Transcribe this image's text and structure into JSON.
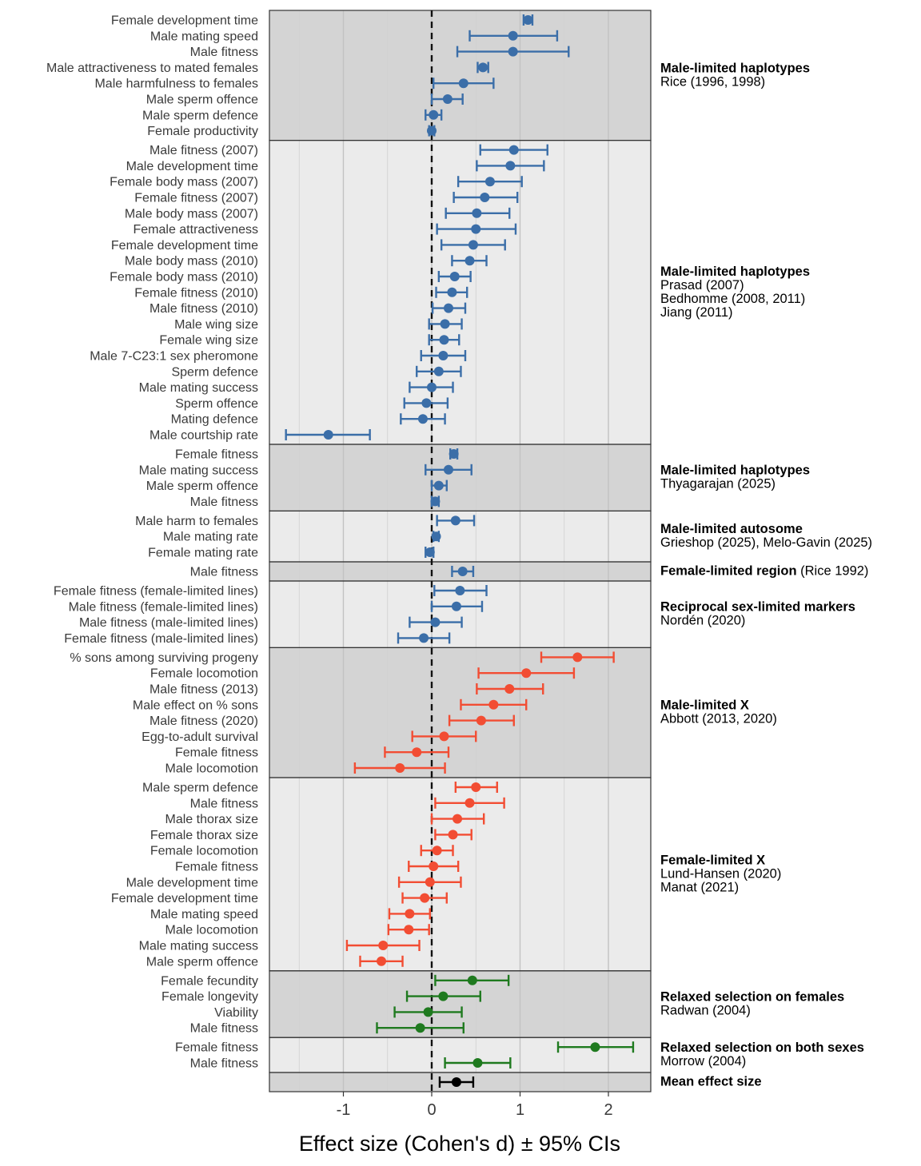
{
  "chart_data": {
    "type": "forest",
    "xlabel": "Effect size (Cohen's d) ± 95% CIs",
    "xlim": [
      -1.85,
      2.48
    ],
    "x_ticks": [
      -1,
      0,
      1,
      2
    ],
    "x_tick_labels": [
      "-1",
      "0",
      "1",
      "2"
    ],
    "zero_line": 0,
    "colors": {
      "blue": "#3b6ea8",
      "red": "#f24d33",
      "green": "#1f7a1f",
      "black": "#000000",
      "panel_dark": "#d4d4d4",
      "panel_light": "#ebebeb"
    },
    "groups": [
      {
        "title": "Male-limited haplotypes",
        "title_suffix": "",
        "subtitle": [
          "Rice (1996, 1998)"
        ],
        "color": "blue",
        "shade": "dark",
        "rows": [
          {
            "label": "Female development time",
            "d": 1.09,
            "lo": 1.04,
            "hi": 1.14
          },
          {
            "label": "Male mating speed",
            "d": 0.92,
            "lo": 0.43,
            "hi": 1.42
          },
          {
            "label": "Male fitness",
            "d": 0.92,
            "lo": 0.29,
            "hi": 1.55
          },
          {
            "label": "Male attractiveness to mated females",
            "d": 0.58,
            "lo": 0.52,
            "hi": 0.64
          },
          {
            "label": "Male harmfulness to females",
            "d": 0.36,
            "lo": 0.02,
            "hi": 0.7
          },
          {
            "label": "Male sperm offence",
            "d": 0.18,
            "lo": 0.0,
            "hi": 0.35
          },
          {
            "label": "Male sperm defence",
            "d": 0.02,
            "lo": -0.07,
            "hi": 0.11
          },
          {
            "label": "Female productivity",
            "d": 0.0,
            "lo": -0.03,
            "hi": 0.03
          }
        ]
      },
      {
        "title": "Male-limited haplotypes",
        "title_suffix": "",
        "subtitle": [
          "Prasad (2007)",
          "Bedhomme (2008, 2011)",
          "Jiang (2011)"
        ],
        "color": "blue",
        "shade": "light",
        "rows": [
          {
            "label": "Male fitness (2007)",
            "d": 0.93,
            "lo": 0.55,
            "hi": 1.31
          },
          {
            "label": "Male development time",
            "d": 0.89,
            "lo": 0.51,
            "hi": 1.27
          },
          {
            "label": "Female body mass (2007)",
            "d": 0.66,
            "lo": 0.3,
            "hi": 1.02
          },
          {
            "label": "Female fitness (2007)",
            "d": 0.6,
            "lo": 0.25,
            "hi": 0.97
          },
          {
            "label": "Male body mass (2007)",
            "d": 0.51,
            "lo": 0.16,
            "hi": 0.88
          },
          {
            "label": "Female attractiveness",
            "d": 0.5,
            "lo": 0.06,
            "hi": 0.95
          },
          {
            "label": "Female development time",
            "d": 0.47,
            "lo": 0.11,
            "hi": 0.83
          },
          {
            "label": "Male body mass  (2010)",
            "d": 0.43,
            "lo": 0.23,
            "hi": 0.62
          },
          {
            "label": "Female body mass (2010)",
            "d": 0.26,
            "lo": 0.08,
            "hi": 0.44
          },
          {
            "label": "Female fitness (2010)",
            "d": 0.23,
            "lo": 0.05,
            "hi": 0.4
          },
          {
            "label": "Male fitness  (2010)",
            "d": 0.19,
            "lo": 0.01,
            "hi": 0.38
          },
          {
            "label": "Male wing size",
            "d": 0.15,
            "lo": -0.03,
            "hi": 0.34
          },
          {
            "label": "Female wing size",
            "d": 0.14,
            "lo": -0.03,
            "hi": 0.31
          },
          {
            "label": "Male 7-C23:1 sex pheromone",
            "d": 0.13,
            "lo": -0.12,
            "hi": 0.38
          },
          {
            "label": "Sperm defence",
            "d": 0.08,
            "lo": -0.17,
            "hi": 0.33
          },
          {
            "label": "Male mating success",
            "d": 0.0,
            "lo": -0.25,
            "hi": 0.24
          },
          {
            "label": "Sperm offence",
            "d": -0.06,
            "lo": -0.31,
            "hi": 0.18
          },
          {
            "label": "Mating defence",
            "d": -0.1,
            "lo": -0.35,
            "hi": 0.15
          },
          {
            "label": "Male courtship rate",
            "d": -1.17,
            "lo": -1.65,
            "hi": -0.7
          }
        ]
      },
      {
        "title": "Male-limited haplotypes",
        "title_suffix": "",
        "subtitle": [
          "Thyagarajan (2025)"
        ],
        "color": "blue",
        "shade": "dark",
        "rows": [
          {
            "label": "Female fitness",
            "d": 0.25,
            "lo": 0.21,
            "hi": 0.29
          },
          {
            "label": "Male mating success",
            "d": 0.19,
            "lo": -0.07,
            "hi": 0.45
          },
          {
            "label": "Male sperm offence",
            "d": 0.08,
            "lo": 0.0,
            "hi": 0.17
          },
          {
            "label": "Male fitness",
            "d": 0.04,
            "lo": 0.0,
            "hi": 0.08
          }
        ]
      },
      {
        "title": "Male-limited autosome",
        "title_suffix": "",
        "subtitle": [
          "Grieshop (2025), Melo-Gavin (2025)"
        ],
        "color": "blue",
        "shade": "light",
        "rows": [
          {
            "label": "Male harm to females",
            "d": 0.27,
            "lo": 0.06,
            "hi": 0.48
          },
          {
            "label": "Male mating rate",
            "d": 0.05,
            "lo": 0.02,
            "hi": 0.08
          },
          {
            "label": "Female mating rate",
            "d": -0.02,
            "lo": -0.07,
            "hi": 0.02
          }
        ]
      },
      {
        "title": "Female-limited region",
        "title_suffix": " (Rice 1992)",
        "subtitle": [],
        "color": "blue",
        "shade": "dark",
        "rows": [
          {
            "label": "Male fitness",
            "d": 0.35,
            "lo": 0.23,
            "hi": 0.47
          }
        ]
      },
      {
        "title": "Reciprocal sex-limited markers",
        "title_suffix": "",
        "subtitle": [
          "Nordén (2020)"
        ],
        "color": "blue",
        "shade": "light",
        "rows": [
          {
            "label": "Female fitness (female-limited lines)",
            "d": 0.32,
            "lo": 0.03,
            "hi": 0.62
          },
          {
            "label": "Male fitness (female-limited lines)",
            "d": 0.28,
            "lo": 0.0,
            "hi": 0.57
          },
          {
            "label": "Male fitness (male-limited lines)",
            "d": 0.04,
            "lo": -0.25,
            "hi": 0.34
          },
          {
            "label": "Female fitness (male-limited lines)",
            "d": -0.09,
            "lo": -0.38,
            "hi": 0.2
          }
        ]
      },
      {
        "title": "Male-limited X",
        "title_suffix": "",
        "subtitle": [
          "Abbott (2013, 2020)"
        ],
        "color": "red",
        "shade": "dark",
        "rows": [
          {
            "label": "% sons among surviving progeny",
            "d": 1.65,
            "lo": 1.24,
            "hi": 2.06
          },
          {
            "label": "Female locomotion",
            "d": 1.07,
            "lo": 0.53,
            "hi": 1.61
          },
          {
            "label": "Male fitness (2013)",
            "d": 0.88,
            "lo": 0.51,
            "hi": 1.26
          },
          {
            "label": "Male effect on % sons",
            "d": 0.7,
            "lo": 0.33,
            "hi": 1.07
          },
          {
            "label": "Male fitness (2020)",
            "d": 0.56,
            "lo": 0.2,
            "hi": 0.93
          },
          {
            "label": "Egg-to-adult survival",
            "d": 0.14,
            "lo": -0.22,
            "hi": 0.5
          },
          {
            "label": "Female fitness",
            "d": -0.17,
            "lo": -0.53,
            "hi": 0.19
          },
          {
            "label": "Male locomotion",
            "d": -0.36,
            "lo": -0.87,
            "hi": 0.15
          }
        ]
      },
      {
        "title": "Female-limited X",
        "title_suffix": "",
        "subtitle": [
          "Lund-Hansen (2020)",
          "Manat (2021)"
        ],
        "color": "red",
        "shade": "light",
        "rows": [
          {
            "label": "Male sperm defence",
            "d": 0.5,
            "lo": 0.27,
            "hi": 0.74
          },
          {
            "label": "Male fitness",
            "d": 0.43,
            "lo": 0.04,
            "hi": 0.82
          },
          {
            "label": "Male thorax size",
            "d": 0.29,
            "lo": 0.0,
            "hi": 0.59
          },
          {
            "label": "Female thorax size",
            "d": 0.24,
            "lo": 0.04,
            "hi": 0.45
          },
          {
            "label": "Female locomotion",
            "d": 0.06,
            "lo": -0.12,
            "hi": 0.24
          },
          {
            "label": "Female fitness",
            "d": 0.02,
            "lo": -0.26,
            "hi": 0.3
          },
          {
            "label": "Male development time",
            "d": -0.02,
            "lo": -0.37,
            "hi": 0.33
          },
          {
            "label": "Female development time",
            "d": -0.08,
            "lo": -0.33,
            "hi": 0.17
          },
          {
            "label": "Male mating speed",
            "d": -0.25,
            "lo": -0.48,
            "hi": -0.02
          },
          {
            "label": "Male locomotion",
            "d": -0.26,
            "lo": -0.49,
            "hi": -0.03
          },
          {
            "label": "Male mating success",
            "d": -0.55,
            "lo": -0.96,
            "hi": -0.14
          },
          {
            "label": "Male sperm offence",
            "d": -0.57,
            "lo": -0.81,
            "hi": -0.33
          }
        ]
      },
      {
        "title": "Relaxed selection on females",
        "title_suffix": "",
        "subtitle": [
          "Radwan (2004)"
        ],
        "color": "green",
        "shade": "dark",
        "rows": [
          {
            "label": "Female fecundity",
            "d": 0.46,
            "lo": 0.04,
            "hi": 0.87
          },
          {
            "label": "Female longevity",
            "d": 0.13,
            "lo": -0.28,
            "hi": 0.55
          },
          {
            "label": "Viability",
            "d": -0.04,
            "lo": -0.42,
            "hi": 0.34
          },
          {
            "label": "Male fitness",
            "d": -0.13,
            "lo": -0.62,
            "hi": 0.36
          }
        ]
      },
      {
        "title": "Relaxed selection on both sexes",
        "title_suffix": "",
        "subtitle": [
          "Morrow (2004)"
        ],
        "color": "green",
        "shade": "light",
        "rows": [
          {
            "label": "Female fitness",
            "d": 1.85,
            "lo": 1.43,
            "hi": 2.28
          },
          {
            "label": "Male fitness",
            "d": 0.52,
            "lo": 0.15,
            "hi": 0.89
          }
        ]
      },
      {
        "title": "Mean effect size",
        "title_suffix": "",
        "subtitle": [],
        "color": "black",
        "shade": "dark",
        "rows": [
          {
            "label": "",
            "d": 0.28,
            "lo": 0.09,
            "hi": 0.47
          }
        ]
      }
    ]
  }
}
